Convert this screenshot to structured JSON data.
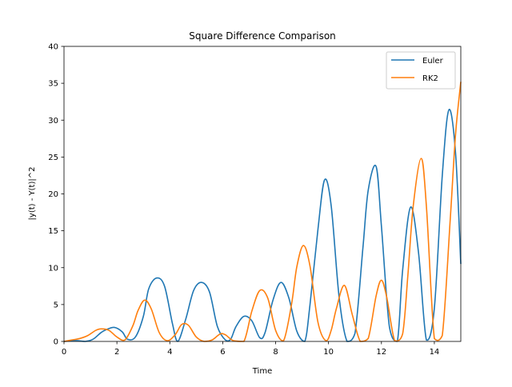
{
  "chart_data": {
    "type": "line",
    "title": "Square Difference Comparison",
    "xlabel": "Time",
    "ylabel": "|y(t) - Y(t)|^2",
    "xlim": [
      0,
      15
    ],
    "ylim": [
      0,
      40
    ],
    "xticks": [
      0,
      2,
      4,
      6,
      8,
      10,
      12,
      14
    ],
    "yticks": [
      0,
      5,
      10,
      15,
      20,
      25,
      30,
      35,
      40
    ],
    "grid": false,
    "legend_position": "top-right",
    "series": [
      {
        "name": "Euler",
        "color": "#1f77b4",
        "x": [
          0.0,
          0.3,
          0.5,
          0.8,
          1.1,
          1.4,
          1.6,
          1.9,
          2.2,
          2.4,
          2.7,
          3.0,
          3.2,
          3.5,
          3.8,
          4.1,
          4.3,
          4.6,
          4.9,
          5.2,
          5.5,
          5.8,
          6.1,
          6.3,
          6.5,
          6.8,
          7.1,
          7.4,
          7.6,
          7.9,
          8.2,
          8.5,
          8.8,
          9.1,
          9.3,
          9.6,
          9.85,
          10.1,
          10.4,
          10.7,
          11.0,
          11.3,
          11.5,
          11.8,
          12.0,
          12.3,
          12.6,
          12.8,
          13.1,
          13.4,
          13.7,
          14.0,
          14.3,
          14.55,
          14.8,
          15.0
        ],
        "y": [
          0.0,
          0.1,
          0.1,
          0.0,
          0.3,
          1.2,
          1.6,
          1.9,
          1.3,
          0.3,
          0.6,
          3.4,
          7.1,
          8.6,
          7.5,
          2.4,
          0.0,
          3.0,
          6.9,
          8.0,
          6.7,
          2.0,
          0.2,
          0.3,
          2.0,
          3.4,
          2.8,
          0.5,
          1.2,
          5.6,
          8.0,
          5.9,
          1.4,
          0.0,
          5.0,
          15.2,
          21.9,
          18.4,
          6.0,
          0.0,
          1.1,
          12.7,
          20.5,
          23.7,
          15.6,
          2.0,
          0.0,
          9.6,
          18.2,
          12.1,
          0.2,
          4.5,
          22.5,
          31.4,
          25.6,
          10.5
        ]
      },
      {
        "name": "RK2",
        "color": "#ff7f0e",
        "x": [
          0.0,
          0.3,
          0.6,
          0.9,
          1.2,
          1.4,
          1.7,
          2.0,
          2.3,
          2.6,
          2.8,
          3.05,
          3.3,
          3.6,
          3.9,
          4.2,
          4.45,
          4.7,
          5.0,
          5.3,
          5.6,
          5.9,
          6.1,
          6.4,
          6.8,
          7.1,
          7.4,
          7.7,
          8.0,
          8.3,
          8.6,
          8.8,
          9.05,
          9.3,
          9.6,
          9.9,
          10.1,
          10.3,
          10.6,
          10.9,
          11.2,
          11.5,
          11.8,
          12.0,
          12.2,
          12.5,
          12.8,
          13.0,
          13.2,
          13.5,
          13.7,
          14.0,
          14.3,
          14.6,
          14.8,
          15.0
        ],
        "y": [
          0.0,
          0.2,
          0.4,
          0.8,
          1.5,
          1.7,
          1.5,
          0.6,
          0.2,
          2.1,
          4.2,
          5.6,
          4.4,
          1.2,
          0.1,
          0.9,
          2.3,
          2.2,
          0.6,
          0.0,
          0.2,
          1.0,
          0.9,
          0.1,
          0.0,
          4.1,
          6.9,
          5.9,
          1.5,
          0.1,
          5.0,
          10.1,
          13.0,
          10.2,
          2.6,
          0.1,
          1.5,
          4.5,
          7.6,
          3.6,
          0.0,
          0.4,
          6.2,
          8.3,
          6.0,
          0.1,
          1.0,
          9.0,
          18.3,
          24.8,
          18.3,
          0.4,
          0.8,
          16.5,
          28.0,
          35.2
        ]
      }
    ]
  }
}
